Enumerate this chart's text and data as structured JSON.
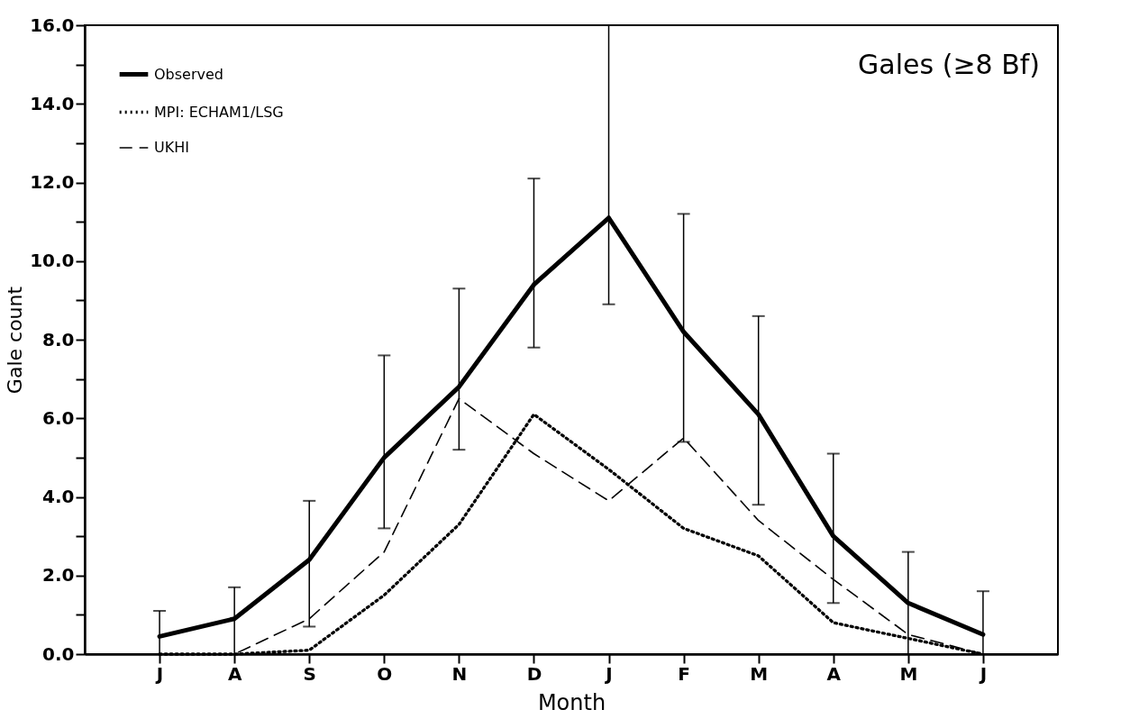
{
  "chart_data": {
    "type": "line",
    "xlabel": "Month",
    "ylabel": "Gale count",
    "annotations": [
      "Gales (≥8 Bf)"
    ],
    "categories": [
      "J",
      "A",
      "S",
      "O",
      "N",
      "D",
      "J",
      "F",
      "M",
      "A",
      "M",
      "J"
    ],
    "series": [
      {
        "name": "Observed",
        "color": "#000000",
        "line_style": "solid",
        "values": [
          0.45,
          0.9,
          2.4,
          5.0,
          6.8,
          9.4,
          11.1,
          8.2,
          6.1,
          3.0,
          1.3,
          0.5
        ],
        "errors": [
          [
            0,
            1.1
          ],
          [
            0,
            1.7
          ],
          [
            0.7,
            3.9
          ],
          [
            3.2,
            7.6
          ],
          [
            5.2,
            9.3
          ],
          [
            7.8,
            12.1
          ],
          [
            8.9,
            16.0
          ],
          [
            5.4,
            11.2
          ],
          [
            3.8,
            8.6
          ],
          [
            1.3,
            5.1
          ],
          [
            0,
            2.6
          ],
          [
            0,
            1.6
          ]
        ]
      },
      {
        "name": "MPI: ECHAM1/LSG",
        "color": "#000000",
        "line_style": "dotted",
        "values": [
          0,
          0,
          0.1,
          1.5,
          3.3,
          6.1,
          4.7,
          3.2,
          2.5,
          0.8,
          0.4,
          0
        ]
      },
      {
        "name": "UKHI",
        "color": "#000000",
        "line_style": "dashed",
        "values": [
          0,
          0,
          0.9,
          2.6,
          6.5,
          5.1,
          3.9,
          5.5,
          3.4,
          1.9,
          0.5,
          0
        ]
      }
    ],
    "ylim": [
      0,
      16
    ],
    "yticks": [
      {
        "value": 0,
        "label": "0.0"
      },
      {
        "value": 1,
        "label": null
      },
      {
        "value": 2,
        "label": "2.0"
      },
      {
        "value": 3,
        "label": null
      },
      {
        "value": 4,
        "label": "4.0"
      },
      {
        "value": 5,
        "label": null
      },
      {
        "value": 6,
        "label": "6.0"
      },
      {
        "value": 7,
        "label": null
      },
      {
        "value": 8,
        "label": "8.0"
      },
      {
        "value": 9,
        "label": null
      },
      {
        "value": 10,
        "label": "10.0"
      },
      {
        "value": 11,
        "label": null
      },
      {
        "value": 12,
        "label": "12.0"
      },
      {
        "value": 13,
        "label": null
      },
      {
        "value": 14,
        "label": "14.0"
      },
      {
        "value": 15,
        "label": null
      },
      {
        "value": 16,
        "label": "16.0"
      }
    ],
    "legend": "top left",
    "grid": false,
    "marker": "none"
  }
}
